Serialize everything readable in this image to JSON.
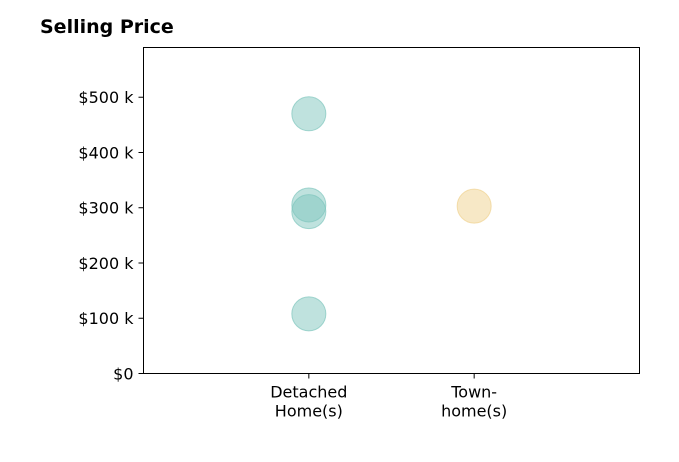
{
  "chart_data": {
    "type": "scatter",
    "title": "Selling Price",
    "xlabel": "",
    "ylabel": "",
    "categories": [
      "Detached\nHome(s)",
      "Town-\nhome(s)"
    ],
    "ylim": [
      0,
      590000
    ],
    "yticks": [
      {
        "value": 0,
        "label": "$0"
      },
      {
        "value": 100000,
        "label": "$100 k"
      },
      {
        "value": 200000,
        "label": "$200 k"
      },
      {
        "value": 300000,
        "label": "$300 k"
      },
      {
        "value": 400000,
        "label": "$400 k"
      },
      {
        "value": 500000,
        "label": "$500 k"
      }
    ],
    "grid": false,
    "series": [
      {
        "category": "Detached\nHome(s)",
        "color": "#7fc6bd",
        "values": [
          470000,
          305000,
          293000,
          108000
        ]
      },
      {
        "category": "Town-\nhome(s)",
        "color": "#f0d28e",
        "values": [
          303000
        ]
      }
    ]
  }
}
